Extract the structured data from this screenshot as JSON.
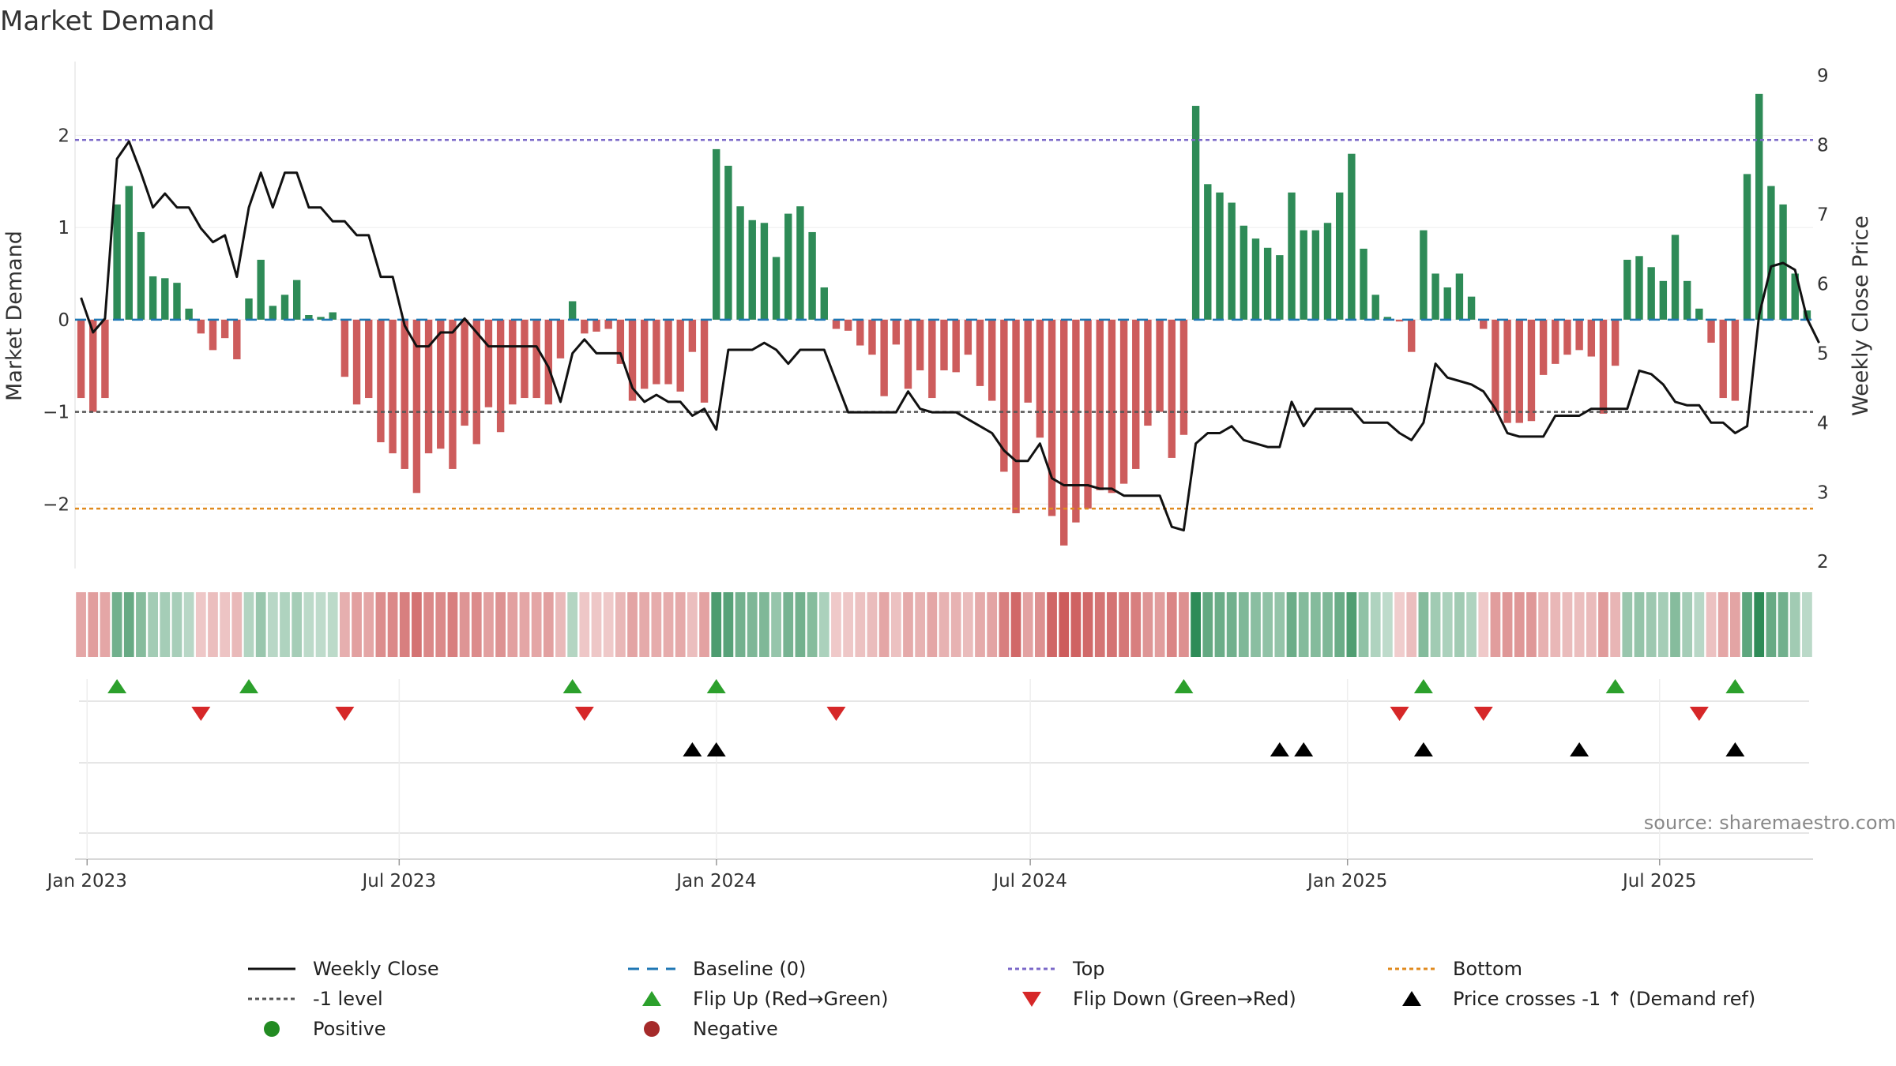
{
  "chart_data": {
    "type": "bar",
    "title": "Market Demand",
    "ylabel": "Market Demand",
    "y2label": "Weekly Close Price",
    "ylim": [
      -2.7,
      2.8
    ],
    "y2lim": [
      1.9,
      9.2
    ],
    "yticks": [
      -2,
      -1,
      0,
      1,
      2
    ],
    "y2ticks": [
      2,
      3,
      4,
      5,
      6,
      7,
      8,
      9
    ],
    "x_start": "2022-12-25",
    "x_end": "2025-09-28",
    "x_ticks": [
      {
        "label": "Jan 2023",
        "date": "2023-01-01"
      },
      {
        "label": "Jul 2023",
        "date": "2023-07-01"
      },
      {
        "label": "Jan 2024",
        "date": "2024-01-01"
      },
      {
        "label": "Jul 2024",
        "date": "2024-07-01"
      },
      {
        "label": "Jan 2025",
        "date": "2025-01-01"
      },
      {
        "label": "Jul 2025",
        "date": "2025-07-01"
      }
    ],
    "reference_lines": {
      "top": 1.95,
      "minus_one": -1.0,
      "bottom": -2.05,
      "baseline": 0
    },
    "demand": [
      -0.85,
      -1.0,
      -0.85,
      1.25,
      1.45,
      0.95,
      0.47,
      0.45,
      0.4,
      0.12,
      -0.15,
      -0.33,
      -0.2,
      -0.43,
      0.23,
      0.65,
      0.15,
      0.27,
      0.43,
      0.05,
      0.03,
      0.08,
      -0.62,
      -0.92,
      -0.85,
      -1.33,
      -1.45,
      -1.62,
      -1.88,
      -1.45,
      -1.4,
      -1.62,
      -1.15,
      -1.35,
      -0.95,
      -1.22,
      -0.92,
      -0.85,
      -0.85,
      -0.92,
      -0.42,
      0.2,
      -0.15,
      -0.13,
      -0.1,
      -0.48,
      -0.88,
      -0.75,
      -0.7,
      -0.7,
      -0.78,
      -0.35,
      -0.9,
      1.85,
      1.67,
      1.23,
      1.08,
      1.05,
      0.68,
      1.15,
      1.23,
      0.95,
      0.35,
      -0.1,
      -0.12,
      -0.28,
      -0.38,
      -0.83,
      -0.27,
      -0.75,
      -0.55,
      -0.85,
      -0.55,
      -0.57,
      -0.38,
      -0.72,
      -0.88,
      -1.65,
      -2.1,
      -0.9,
      -1.28,
      -2.13,
      -2.45,
      -2.2,
      -2.05,
      -1.85,
      -1.88,
      -1.78,
      -1.62,
      -1.15,
      -1.0,
      -1.5,
      -1.25,
      2.32,
      1.47,
      1.38,
      1.27,
      1.02,
      0.88,
      0.78,
      0.7,
      1.38,
      0.97,
      0.97,
      1.05,
      1.38,
      1.8,
      0.77,
      0.27,
      0.03,
      -0.02,
      -0.35,
      0.97,
      0.5,
      0.35,
      0.5,
      0.25,
      -0.1,
      -1.0,
      -1.12,
      -1.12,
      -1.1,
      -0.6,
      -0.48,
      -0.38,
      -0.33,
      -0.4,
      -1.02,
      -0.5,
      0.65,
      0.69,
      0.57,
      0.42,
      0.92,
      0.42,
      0.12,
      -0.25,
      -0.85,
      -0.88,
      1.58,
      2.45,
      1.45,
      1.25,
      0.5,
      0.1
    ],
    "price": [
      5.8,
      5.3,
      5.5,
      7.8,
      8.05,
      7.6,
      7.1,
      7.3,
      7.1,
      7.1,
      6.8,
      6.6,
      6.7,
      6.1,
      7.1,
      7.6,
      7.1,
      7.6,
      7.6,
      7.1,
      7.1,
      6.9,
      6.9,
      6.7,
      6.7,
      6.1,
      6.1,
      5.4,
      5.1,
      5.1,
      5.3,
      5.3,
      5.5,
      5.3,
      5.1,
      5.1,
      5.1,
      5.1,
      5.1,
      4.8,
      4.3,
      5.0,
      5.2,
      5.0,
      5.0,
      5.0,
      4.5,
      4.3,
      4.4,
      4.3,
      4.3,
      4.1,
      4.2,
      3.9,
      5.05,
      5.05,
      5.05,
      5.15,
      5.05,
      4.85,
      5.05,
      5.05,
      5.05,
      4.6,
      4.15,
      4.15,
      4.15,
      4.15,
      4.15,
      4.45,
      4.2,
      4.15,
      4.15,
      4.15,
      4.05,
      3.95,
      3.85,
      3.6,
      3.45,
      3.45,
      3.7,
      3.2,
      3.1,
      3.1,
      3.1,
      3.05,
      3.05,
      2.95,
      2.95,
      2.95,
      2.95,
      2.5,
      2.45,
      3.7,
      3.85,
      3.85,
      3.95,
      3.75,
      3.7,
      3.65,
      3.65,
      4.3,
      3.95,
      4.2,
      4.2,
      4.2,
      4.2,
      4.0,
      4.0,
      4.0,
      3.85,
      3.75,
      4.0,
      4.85,
      4.65,
      4.6,
      4.55,
      4.45,
      4.2,
      3.85,
      3.8,
      3.8,
      3.8,
      4.1,
      4.1,
      4.1,
      4.2,
      4.2,
      4.2,
      4.2,
      4.75,
      4.7,
      4.55,
      4.3,
      4.25,
      4.25,
      4.0,
      4.0,
      3.85,
      3.95,
      5.55,
      6.25,
      6.3,
      6.2,
      5.5,
      5.15
    ],
    "flip_up_weeks": [
      3,
      14,
      41,
      53,
      92,
      112,
      128,
      138
    ],
    "flip_down_weeks": [
      10,
      22,
      42,
      63,
      110,
      117,
      135
    ],
    "price_cross_weeks": [
      51,
      53,
      100,
      102,
      112,
      125,
      138
    ]
  },
  "source_text": "source: sharemaestro.com",
  "colors": {
    "positive": "#2e8b57",
    "negative": "#cd5c5c",
    "price_line": "#111111",
    "top_line": "#7b68c8",
    "bottom_line": "#e08a1e",
    "minus_one_line": "#555555",
    "baseline_line": "#1f77b4",
    "flip_up": "#2ca02c",
    "flip_down": "#d62728",
    "cross": "#000000"
  },
  "legend": {
    "weekly_close": "Weekly Close",
    "baseline": "Baseline (0)",
    "top": "Top",
    "bottom": "Bottom",
    "minus_one": "-1 level",
    "flip_up": "Flip Up (Red→Green)",
    "flip_down": "Flip Down (Green→Red)",
    "price_cross": "Price crosses -1 ↑ (Demand ref)",
    "positive": "Positive",
    "negative": "Negative"
  }
}
